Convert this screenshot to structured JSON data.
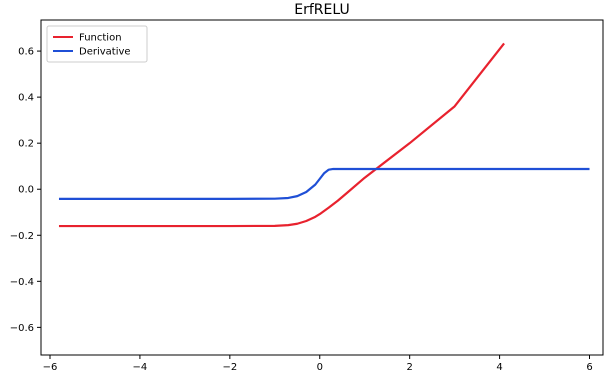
{
  "chart_data": {
    "type": "line",
    "title": "ErfRELU",
    "xlabel": "",
    "ylabel": "",
    "xlim": [
      -6.2,
      6.3
    ],
    "ylim": [
      -0.72,
      0.735
    ],
    "xticks": [
      -6,
      -4,
      -2,
      0,
      2,
      4,
      6
    ],
    "yticks": [
      -0.6,
      -0.4,
      -0.2,
      0.0,
      0.2,
      0.4,
      0.6
    ],
    "xtick_labels": [
      "−6",
      "−4",
      "−2",
      "0",
      "2",
      "4",
      "6"
    ],
    "ytick_labels": [
      "−0.6",
      "−0.4",
      "−0.2",
      "0.0",
      "0.2",
      "0.4",
      "0.6"
    ],
    "grid": false,
    "legend_position": "top-left",
    "series": [
      {
        "name": "Function",
        "color": "#e8222e",
        "x": [
          -5.8,
          -2.0,
          -1.0,
          -0.7,
          -0.5,
          -0.3,
          -0.1,
          0.0,
          0.2,
          0.4,
          0.6,
          1.0,
          2.0,
          3.0,
          4.1
        ],
        "y": [
          -0.16,
          -0.16,
          -0.159,
          -0.156,
          -0.15,
          -0.138,
          -0.12,
          -0.108,
          -0.08,
          -0.05,
          -0.017,
          0.05,
          0.2,
          0.36,
          0.633
        ]
      },
      {
        "name": "Derivative",
        "color": "#1f4fd6",
        "x": [
          -5.8,
          -2.0,
          -1.0,
          -0.7,
          -0.5,
          -0.3,
          -0.1,
          0.0,
          0.1,
          0.2,
          0.3,
          1.0,
          3.0,
          6.0
        ],
        "y": [
          -0.042,
          -0.042,
          -0.041,
          -0.038,
          -0.03,
          -0.012,
          0.02,
          0.045,
          0.07,
          0.085,
          0.088,
          0.088,
          0.088,
          0.088
        ]
      }
    ]
  }
}
